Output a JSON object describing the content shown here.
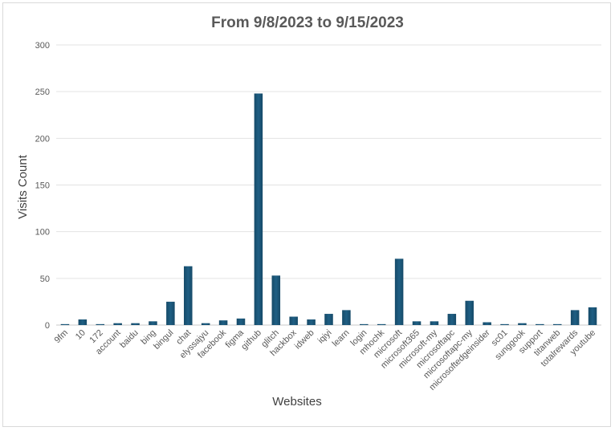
{
  "chart_data": {
    "type": "bar",
    "title": "From 9/8/2023 to 9/15/2023",
    "xlabel": "Websites",
    "ylabel": "Visits Count",
    "ylim": [
      0,
      300
    ],
    "yticks": [
      0,
      50,
      100,
      150,
      200,
      250,
      300
    ],
    "grid": true,
    "legend": "none",
    "bar_color": "#1f5f84",
    "categories": [
      "9fm",
      "10",
      "172",
      "account",
      "baidu",
      "bing",
      "bingul",
      "chat",
      "elyssajyu",
      "facebook",
      "figma",
      "github",
      "glitch",
      "hackbox",
      "idweb",
      "iqiyi",
      "learn",
      "login",
      "mhochk",
      "microsoft",
      "microsoft365",
      "microsoft-my",
      "microsoftapc",
      "microsoftapc-my",
      "microsoftedgeinsider",
      "sc01",
      "sunggook",
      "support",
      "titanweb",
      "totalrewards",
      "youtube"
    ],
    "values": [
      1,
      6,
      1,
      2,
      2,
      4,
      25,
      63,
      2,
      5,
      7,
      248,
      53,
      9,
      6,
      12,
      16,
      1,
      1,
      71,
      4,
      4,
      12,
      26,
      3,
      1,
      2,
      1,
      1,
      16,
      19
    ]
  }
}
